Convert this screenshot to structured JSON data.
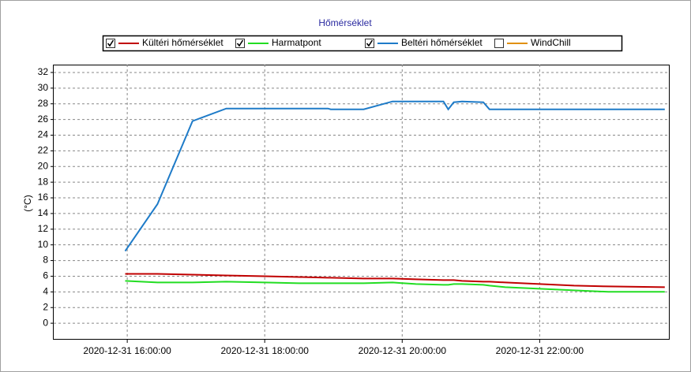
{
  "chart_data": {
    "type": "line",
    "title": "Hőmérséklet",
    "y_label": "(°C)",
    "x": [
      15.97,
      16.44,
      16.95,
      17.44,
      18.0,
      18.5,
      18.92,
      18.96,
      19.44,
      19.86,
      20.2,
      20.6,
      20.67,
      20.75,
      20.87,
      21.18,
      21.27,
      21.5,
      22.0,
      22.5,
      23.0,
      23.82
    ],
    "series": [
      {
        "name": "Kültéri hőmérséklet",
        "color": "#c00000",
        "checked": true,
        "values": [
          6.3,
          6.3,
          6.2,
          6.1,
          6.0,
          5.9,
          5.8,
          5.8,
          5.7,
          5.7,
          5.6,
          5.5,
          5.5,
          5.5,
          5.4,
          5.3,
          5.3,
          5.2,
          5.0,
          4.8,
          4.7,
          4.6
        ]
      },
      {
        "name": "Harmatpont",
        "color": "#22dd22",
        "checked": true,
        "values": [
          5.4,
          5.2,
          5.2,
          5.3,
          5.2,
          5.1,
          5.1,
          5.1,
          5.1,
          5.2,
          5.0,
          4.9,
          4.9,
          5.0,
          5.0,
          4.9,
          4.8,
          4.6,
          4.4,
          4.2,
          4.0,
          4.0
        ]
      },
      {
        "name": "Beltéri hőmérséklet",
        "color": "#1e7bc8",
        "checked": true,
        "values": [
          9.2,
          15.2,
          25.8,
          27.4,
          27.4,
          27.4,
          27.4,
          27.3,
          27.3,
          28.3,
          28.3,
          28.3,
          27.3,
          28.2,
          28.3,
          28.2,
          27.3,
          27.3,
          27.3,
          27.3,
          27.3,
          27.3
        ]
      },
      {
        "name": "WindChill",
        "color": "#e0900a",
        "checked": false,
        "values": [
          null,
          null,
          null,
          null,
          null,
          null,
          null,
          null,
          null,
          null,
          null,
          null,
          null,
          null,
          null,
          null,
          null,
          null,
          null,
          null,
          null,
          null
        ]
      }
    ],
    "xlim": [
      14.93,
      23.88
    ],
    "xticks": [
      {
        "value": 16,
        "label": "2020-12-31 16:00:00"
      },
      {
        "value": 18,
        "label": "2020-12-31 18:00:00"
      },
      {
        "value": 20,
        "label": "2020-12-31 20:00:00"
      },
      {
        "value": 22,
        "label": "2020-12-31 22:00:00"
      }
    ],
    "ylim": [
      -2,
      33
    ],
    "yticks": [
      0,
      2,
      4,
      6,
      8,
      10,
      12,
      14,
      16,
      18,
      20,
      22,
      24,
      26,
      28,
      30,
      32
    ],
    "grid": true
  }
}
